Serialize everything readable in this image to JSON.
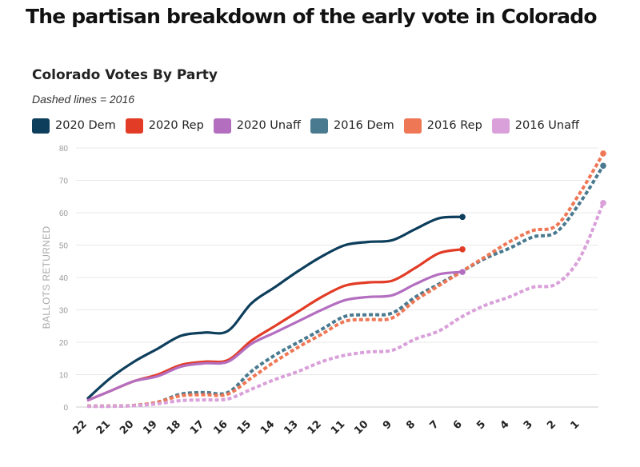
{
  "page": {
    "headline": "The partisan breakdown of the early vote in Colorado"
  },
  "chart_data": {
    "type": "line",
    "title": "Colorado Votes By Party",
    "subtitle": "Dashed lines = 2016",
    "xlabel": "",
    "ylabel": "BALLOTS RETURNED",
    "x_ticks": [
      "22",
      "21",
      "20",
      "19",
      "18",
      "17",
      "16",
      "15",
      "14",
      "13",
      "12",
      "11",
      "10",
      "9",
      "8",
      "7",
      "6",
      "5",
      "4",
      "3",
      "2",
      "1"
    ],
    "ylim": [
      0,
      80
    ],
    "y_ticks": [
      0,
      10,
      20,
      30,
      40,
      50,
      60,
      70,
      80
    ],
    "grid": "horizontal",
    "legend_position": "top-left",
    "series": [
      {
        "name": "2020 Dem",
        "color": "#0d3e5c",
        "style": "solid",
        "x": [
          22,
          21,
          20,
          19,
          18,
          17,
          16,
          15,
          14,
          13,
          12,
          11,
          10,
          9,
          8,
          7,
          6
        ],
        "values": [
          2.5,
          9,
          14,
          18,
          22,
          23,
          23.5,
          32,
          37,
          42,
          46.5,
          50,
          51,
          51.5,
          55,
          58.3,
          58.7
        ]
      },
      {
        "name": "2020 Rep",
        "color": "#e23c26",
        "style": "solid",
        "x": [
          22,
          21,
          20,
          19,
          18,
          17,
          16,
          15,
          14,
          13,
          12,
          11,
          10,
          9,
          8,
          7,
          6
        ],
        "values": [
          2,
          5,
          8,
          10,
          13,
          14,
          14.5,
          20.5,
          25,
          29.5,
          34,
          37.5,
          38.5,
          39,
          43,
          47.5,
          48.7
        ]
      },
      {
        "name": "2020 Unaff",
        "color": "#b46ec0",
        "style": "solid",
        "x": [
          22,
          21,
          20,
          19,
          18,
          17,
          16,
          15,
          14,
          13,
          12,
          11,
          10,
          9,
          8,
          7,
          6
        ],
        "values": [
          2,
          5,
          8,
          9.5,
          12.5,
          13.5,
          14,
          19.5,
          23,
          26.5,
          30,
          33,
          34,
          34.5,
          38,
          41,
          41.7
        ]
      },
      {
        "name": "2016 Dem",
        "color": "#4a7a8f",
        "style": "dashed",
        "x": [
          22,
          21,
          20,
          19,
          18,
          17,
          16,
          15,
          14,
          13,
          12,
          11,
          10,
          9,
          8,
          7,
          6,
          5,
          4,
          3,
          2,
          1,
          0
        ],
        "values": [
          0.3,
          0.3,
          0.5,
          1.5,
          4,
          4.5,
          4.5,
          11,
          16,
          20,
          24,
          28,
          28.5,
          29,
          34,
          38,
          42,
          46,
          49,
          52.5,
          54,
          63,
          74.5
        ]
      },
      {
        "name": "2016 Rep",
        "color": "#ee7755",
        "style": "dashed",
        "x": [
          22,
          21,
          20,
          19,
          18,
          17,
          16,
          15,
          14,
          13,
          12,
          11,
          10,
          9,
          8,
          7,
          6,
          5,
          4,
          3,
          2,
          1,
          0
        ],
        "values": [
          0.3,
          0.3,
          0.5,
          1.5,
          3.5,
          3.8,
          4,
          9,
          14,
          18.5,
          22.5,
          26.5,
          27,
          27.5,
          33,
          37.5,
          42,
          46.5,
          51,
          54.5,
          56,
          66,
          78.3
        ]
      },
      {
        "name": "2016 Unaff",
        "color": "#d9a0d9",
        "style": "dashed",
        "x": [
          22,
          21,
          20,
          19,
          18,
          17,
          16,
          15,
          14,
          13,
          12,
          11,
          10,
          9,
          8,
          7,
          6,
          5,
          4,
          3,
          2,
          1,
          0
        ],
        "values": [
          0.2,
          0.2,
          0.4,
          1,
          2,
          2.2,
          2.5,
          5.5,
          8.5,
          11,
          14,
          16,
          17,
          17.5,
          21,
          23.5,
          28,
          31.5,
          34,
          37,
          38,
          46,
          63
        ]
      }
    ]
  }
}
